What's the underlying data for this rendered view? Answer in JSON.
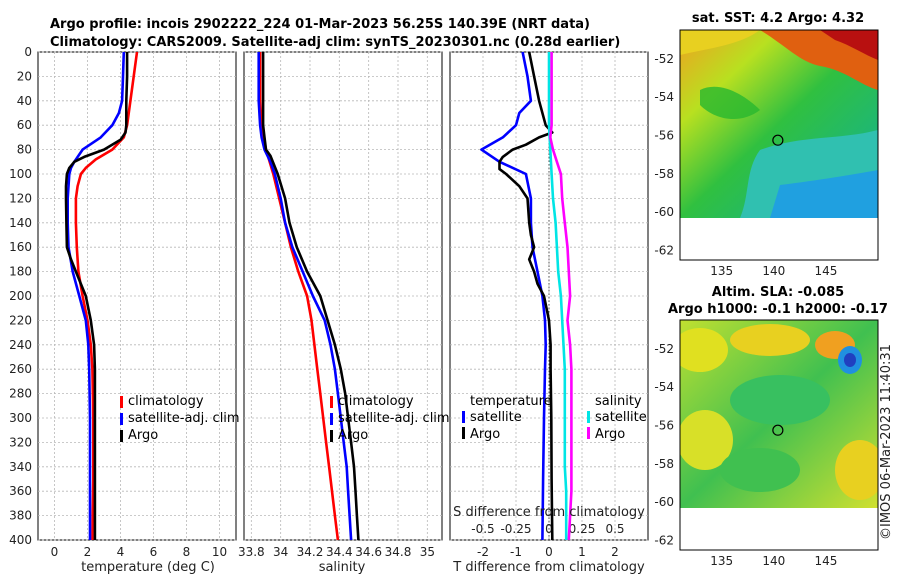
{
  "header": {
    "line1": "Argo profile: incois 2902222_224 01-Mar-2023 56.25S 140.39E (NRT data)",
    "line2": "Climatology: CARS2009. Satellite-adj clim: synTS_20230301.nc (0.28d earlier)"
  },
  "watermark": "©IMOS 06-Mar-2023 11:40:31",
  "colors": {
    "climatology": "#ff0000",
    "satellite": "#0000ff",
    "argo": "#000000",
    "sal_satellite": "#00e5e5",
    "sal_argo": "#ff00ff"
  },
  "chart_data": [
    {
      "type": "line",
      "id": "temperature",
      "xlabel": "temperature (deg C)",
      "ylabel": "",
      "xlim": [
        -1,
        11
      ],
      "ylim": [
        0,
        400
      ],
      "xticks": [
        0,
        2,
        4,
        6,
        8,
        10
      ],
      "yticks": [
        0,
        20,
        40,
        60,
        80,
        100,
        120,
        140,
        160,
        180,
        200,
        220,
        240,
        260,
        280,
        300,
        320,
        340,
        360,
        380,
        400
      ],
      "legend": [
        "climatology",
        "satellite-adj. clim",
        "Argo"
      ],
      "series": [
        {
          "name": "climatology",
          "color": "#ff0000",
          "depth": [
            0,
            20,
            40,
            60,
            70,
            80,
            88,
            95,
            100,
            110,
            120,
            140,
            160,
            180,
            200,
            220,
            240,
            260,
            300,
            350,
            400
          ],
          "values": [
            5.0,
            4.8,
            4.6,
            4.4,
            4.2,
            3.5,
            2.5,
            1.9,
            1.6,
            1.4,
            1.3,
            1.3,
            1.35,
            1.45,
            1.7,
            2.0,
            2.2,
            2.3,
            2.35,
            2.35,
            2.3
          ]
        },
        {
          "name": "satellite-adj. clim",
          "color": "#0000ff",
          "depth": [
            0,
            20,
            40,
            50,
            60,
            70,
            80,
            90,
            95,
            100,
            120,
            140,
            160,
            180,
            200,
            220,
            240,
            260,
            300,
            350,
            400
          ],
          "values": [
            4.2,
            4.15,
            4.1,
            3.9,
            3.5,
            2.8,
            1.7,
            1.2,
            1.0,
            0.9,
            0.8,
            0.8,
            0.85,
            1.1,
            1.5,
            1.9,
            2.05,
            2.1,
            2.15,
            2.15,
            2.15
          ]
        },
        {
          "name": "Argo",
          "color": "#000000",
          "depth": [
            0,
            20,
            40,
            60,
            66,
            72,
            80,
            86,
            90,
            95,
            100,
            110,
            120,
            140,
            160,
            170,
            180,
            200,
            220,
            240,
            260,
            300,
            350,
            400
          ],
          "values": [
            4.4,
            4.4,
            4.35,
            4.35,
            4.3,
            4.0,
            3.0,
            1.8,
            1.2,
            0.9,
            0.75,
            0.7,
            0.7,
            0.72,
            0.75,
            1.0,
            1.3,
            1.9,
            2.2,
            2.4,
            2.45,
            2.45,
            2.45,
            2.45
          ]
        }
      ]
    },
    {
      "type": "line",
      "id": "salinity",
      "xlabel": "salinity",
      "ylabel": "",
      "xlim": [
        33.75,
        35.1
      ],
      "ylim": [
        0,
        400
      ],
      "xticks": [
        33.8,
        34,
        34.2,
        34.4,
        34.6,
        34.8,
        35
      ],
      "xticklabels": [
        "33.8",
        "34",
        "34.2",
        "34.4",
        "34.6",
        "34.8",
        "35"
      ],
      "legend": [
        "climatology",
        "satellite-adj. clim",
        "Argo"
      ],
      "series": [
        {
          "name": "climatology",
          "color": "#ff0000",
          "depth": [
            0,
            40,
            60,
            80,
            100,
            120,
            140,
            160,
            180,
            200,
            220,
            240,
            260,
            280,
            300,
            320,
            340,
            360,
            380,
            400
          ],
          "values": [
            33.86,
            33.86,
            33.87,
            33.9,
            33.95,
            33.99,
            34.03,
            34.07,
            34.12,
            34.18,
            34.21,
            34.23,
            34.25,
            34.27,
            34.29,
            34.31,
            34.33,
            34.35,
            34.37,
            34.39
          ]
        },
        {
          "name": "satellite-adj. clim",
          "color": "#0000ff",
          "depth": [
            0,
            40,
            60,
            70,
            80,
            90,
            100,
            120,
            140,
            160,
            180,
            200,
            220,
            240,
            260,
            280,
            300,
            320,
            340,
            360,
            380,
            400
          ],
          "values": [
            33.85,
            33.85,
            33.86,
            33.87,
            33.89,
            33.93,
            33.96,
            34.0,
            34.03,
            34.08,
            34.15,
            34.22,
            34.3,
            34.34,
            34.37,
            34.39,
            34.41,
            34.43,
            34.45,
            34.46,
            34.47,
            34.48
          ]
        },
        {
          "name": "Argo",
          "color": "#000000",
          "depth": [
            0,
            40,
            60,
            70,
            80,
            85,
            100,
            120,
            140,
            160,
            180,
            200,
            220,
            240,
            260,
            280,
            300,
            320,
            340,
            360,
            380,
            400
          ],
          "values": [
            33.88,
            33.88,
            33.88,
            33.89,
            33.9,
            33.93,
            33.98,
            34.03,
            34.06,
            34.11,
            34.18,
            34.27,
            34.32,
            34.37,
            34.41,
            34.44,
            34.46,
            34.48,
            34.5,
            34.51,
            34.52,
            34.53
          ]
        }
      ]
    },
    {
      "type": "line",
      "id": "difference",
      "xlabel": "T difference from climatology",
      "xlabel_top": "S difference from climatology",
      "xlim": [
        -3,
        3
      ],
      "ylim": [
        0,
        400
      ],
      "xticks": [
        -2,
        -1,
        0,
        1,
        2
      ],
      "top_xticks": [
        -0.5,
        -0.25,
        0,
        0.25,
        0.5
      ],
      "top_xticklabels": [
        "-0.5",
        "-0.25",
        "0",
        "0.25",
        "0.5"
      ],
      "legend_temperature_title": "temperature",
      "legend_salinity_title": "salinity",
      "legend_temperature": [
        "satellite",
        "Argo"
      ],
      "legend_salinity": [
        "satellite",
        "Argo"
      ],
      "series": [
        {
          "name": "temperature satellite",
          "color": "#0000ff",
          "scale": "T",
          "depth": [
            0,
            20,
            40,
            50,
            60,
            70,
            80,
            90,
            100,
            120,
            140,
            160,
            180,
            200,
            220,
            240,
            260,
            300,
            350,
            400
          ],
          "values": [
            -0.8,
            -0.65,
            -0.55,
            -0.9,
            -1.0,
            -1.4,
            -2.05,
            -1.5,
            -0.7,
            -0.55,
            -0.55,
            -0.5,
            -0.35,
            -0.2,
            -0.12,
            -0.1,
            -0.12,
            -0.15,
            -0.18,
            -0.2
          ]
        },
        {
          "name": "temperature Argo",
          "color": "#000000",
          "scale": "T",
          "depth": [
            0,
            20,
            40,
            60,
            66,
            70,
            76,
            80,
            86,
            90,
            96,
            100,
            110,
            120,
            140,
            150,
            160,
            170,
            180,
            190,
            200,
            220,
            240,
            260,
            300,
            350,
            400
          ],
          "values": [
            -0.6,
            -0.45,
            -0.3,
            -0.1,
            0.1,
            -0.3,
            -0.7,
            -1.1,
            -1.4,
            -1.5,
            -1.5,
            -1.3,
            -0.9,
            -0.65,
            -0.6,
            -0.55,
            -0.45,
            -0.6,
            -0.45,
            -0.35,
            -0.15,
            0.0,
            0.05,
            0.05,
            0.07,
            0.08,
            0.1
          ]
        },
        {
          "name": "salinity satellite",
          "color": "#00e5e5",
          "scale": "S",
          "depth": [
            0,
            40,
            60,
            80,
            100,
            120,
            140,
            160,
            180,
            200,
            220,
            240,
            260,
            280,
            300,
            320,
            340,
            360,
            380,
            400
          ],
          "values": [
            0.0,
            0.0,
            0.0,
            0.01,
            0.02,
            0.03,
            0.05,
            0.06,
            0.07,
            0.09,
            0.1,
            0.11,
            0.12,
            0.12,
            0.12,
            0.12,
            0.12,
            0.13,
            0.13,
            0.13
          ]
        },
        {
          "name": "salinity Argo",
          "color": "#ff00ff",
          "scale": "S",
          "depth": [
            0,
            20,
            40,
            60,
            70,
            80,
            90,
            100,
            120,
            140,
            160,
            180,
            200,
            220,
            240,
            260,
            280,
            300,
            320,
            340,
            360,
            380,
            400
          ],
          "values": [
            0.02,
            0.02,
            0.02,
            0.02,
            0.01,
            0.03,
            0.06,
            0.09,
            0.1,
            0.12,
            0.14,
            0.15,
            0.16,
            0.14,
            0.16,
            0.17,
            0.17,
            0.17,
            0.17,
            0.17,
            0.17,
            0.16,
            0.15
          ]
        }
      ]
    },
    {
      "type": "heatmap",
      "id": "sst_map",
      "title": "sat. SST: 4.2 Argo: 4.32",
      "xlim": [
        131,
        150
      ],
      "ylim": [
        -62.5,
        -50.5
      ],
      "data_ylim": [
        -60,
        -50.5
      ],
      "xticks": [
        135,
        140,
        145
      ],
      "yticks": [
        -52,
        -54,
        -56,
        -58,
        -60,
        -62
      ],
      "marker": {
        "lon": 140.39,
        "lat": -56.25
      }
    },
    {
      "type": "heatmap",
      "id": "sla_map",
      "title": "Altim. SLA: -0.085",
      "subtitle": "Argo h1000: -0.1 h2000: -0.17",
      "xlim": [
        131,
        150
      ],
      "ylim": [
        -62.5,
        -50.5
      ],
      "data_ylim": [
        -60,
        -50.5
      ],
      "xticks": [
        135,
        140,
        145
      ],
      "yticks": [
        -52,
        -54,
        -56,
        -58,
        -60,
        -62
      ],
      "marker": {
        "lon": 140.39,
        "lat": -56.25
      }
    }
  ]
}
